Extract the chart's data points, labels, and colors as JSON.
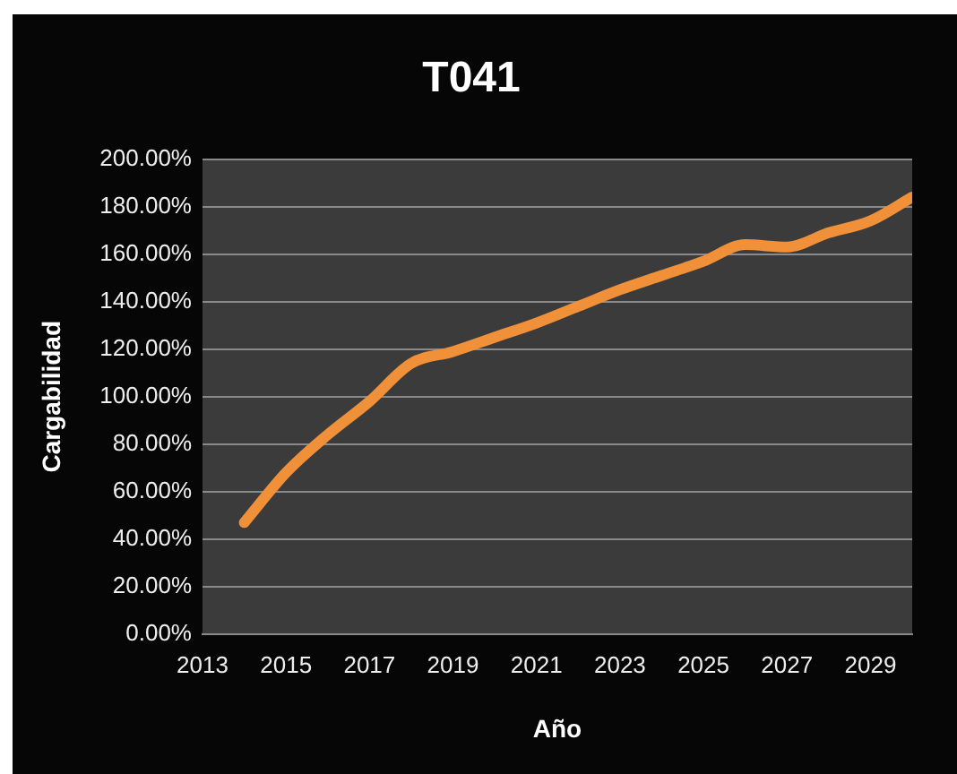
{
  "chart_data": {
    "type": "line",
    "title": "T041",
    "xlabel": "Año",
    "ylabel": "Cargabilidad",
    "x": [
      2014,
      2015,
      2016,
      2017,
      2018,
      2019,
      2020,
      2021,
      2022,
      2023,
      2024,
      2025,
      2026,
      2027,
      2028,
      2029,
      2030
    ],
    "series": [
      {
        "color": "#f0913a",
        "values": [
          47,
          68,
          84,
          98,
          114,
          119,
          125,
          131,
          138,
          145,
          151,
          157,
          164,
          163,
          169,
          174,
          184
        ]
      }
    ],
    "xlim": [
      2013,
      2030
    ],
    "xticks": [
      2013,
      2015,
      2017,
      2019,
      2021,
      2023,
      2025,
      2027,
      2029
    ],
    "ylim": [
      0,
      200
    ],
    "yticks": [
      {
        "value": 0,
        "label": "0.00%"
      },
      {
        "value": 20,
        "label": "20.00%"
      },
      {
        "value": 40,
        "label": "40.00%"
      },
      {
        "value": 60,
        "label": "60.00%"
      },
      {
        "value": 80,
        "label": "80.00%"
      },
      {
        "value": 100,
        "label": "100.00%"
      },
      {
        "value": 120,
        "label": "120.00%"
      },
      {
        "value": 140,
        "label": "140.00%"
      },
      {
        "value": 160,
        "label": "160.00%"
      },
      {
        "value": 180,
        "label": "180.00%"
      },
      {
        "value": 200,
        "label": "200.00%"
      }
    ],
    "grid": "y",
    "legend": false,
    "marker": "none",
    "line_style": "solid"
  }
}
